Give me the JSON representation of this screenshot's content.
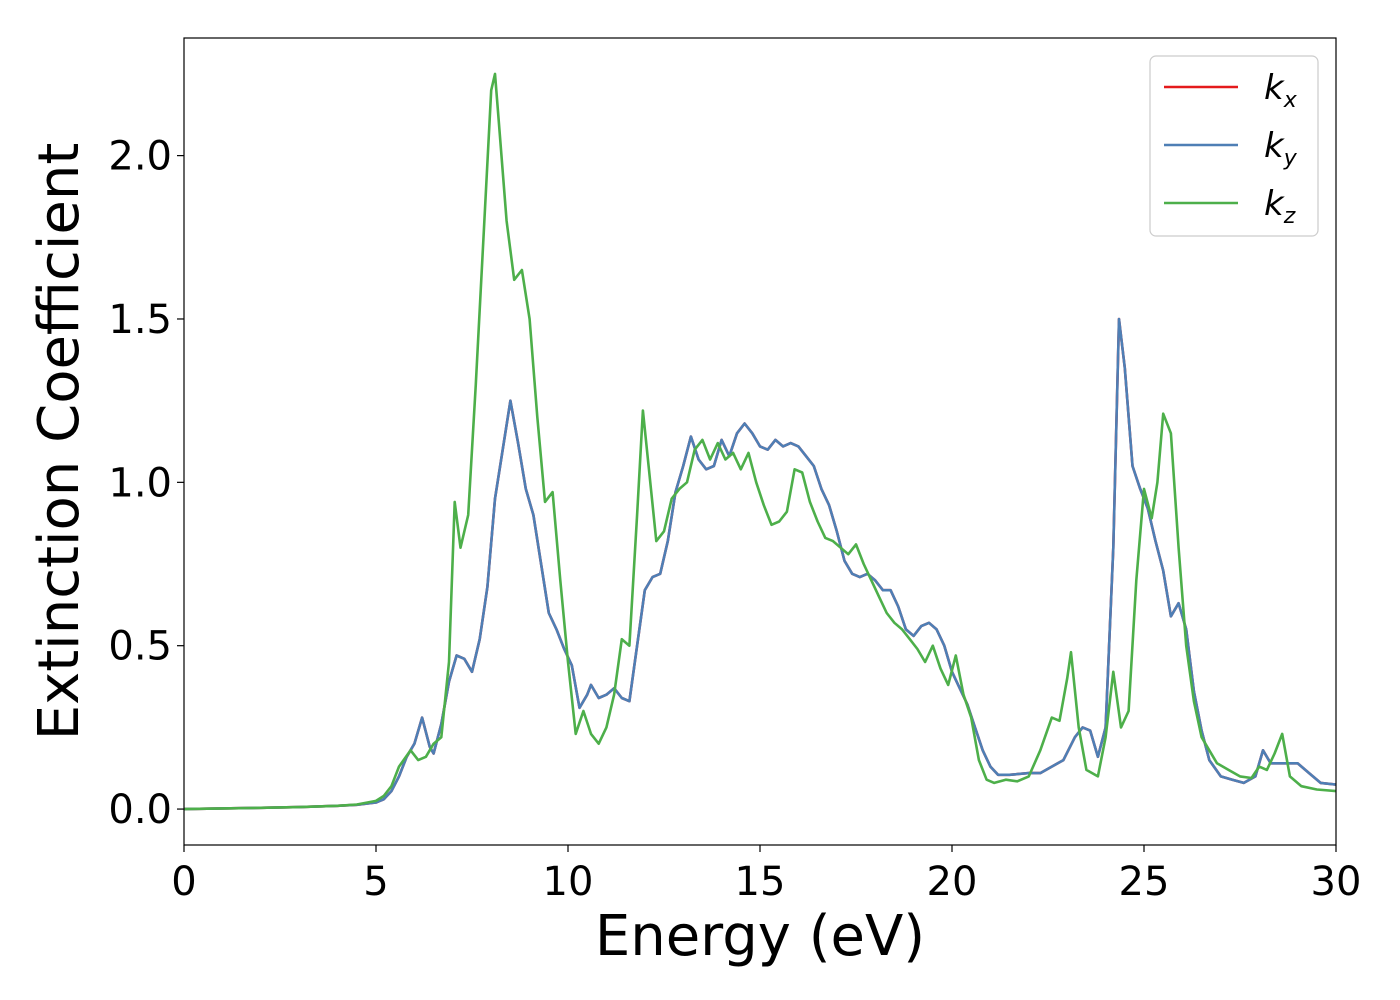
{
  "chart_data": {
    "type": "line",
    "title": "",
    "xlabel": "Energy (eV)",
    "ylabel": "Extinction Coefficient",
    "xlim": [
      0,
      30
    ],
    "ylim": [
      -0.11,
      2.36
    ],
    "xticks": [
      0,
      5,
      10,
      15,
      20,
      25,
      30
    ],
    "xtick_labels": [
      "0",
      "5",
      "10",
      "15",
      "20",
      "25",
      "30"
    ],
    "yticks": [
      0.0,
      0.5,
      1.0,
      1.5,
      2.0
    ],
    "ytick_labels": [
      "0.0",
      "0.5",
      "1.0",
      "1.5",
      "2.0"
    ],
    "grid": false,
    "legend": "top-right",
    "series": [
      {
        "name": "k_x",
        "label_main": "k",
        "label_sub": "x",
        "color": "#e41a1c",
        "x": [
          0,
          1,
          2,
          3,
          4,
          4.5,
          5,
          5.2,
          5.4,
          5.6,
          5.8,
          6.0,
          6.2,
          6.4,
          6.5,
          6.7,
          6.9,
          7.1,
          7.3,
          7.5,
          7.7,
          7.9,
          8.1,
          8.3,
          8.5,
          8.7,
          8.9,
          9.1,
          9.3,
          9.5,
          9.7,
          9.9,
          10.1,
          10.3,
          10.5,
          10.6,
          10.8,
          11.0,
          11.2,
          11.4,
          11.6,
          11.8,
          12.0,
          12.2,
          12.4,
          12.6,
          12.8,
          13.0,
          13.2,
          13.4,
          13.6,
          13.8,
          14.0,
          14.2,
          14.4,
          14.6,
          14.8,
          15.0,
          15.2,
          15.4,
          15.6,
          15.8,
          16.0,
          16.2,
          16.4,
          16.6,
          16.8,
          17.0,
          17.2,
          17.4,
          17.6,
          17.8,
          18.0,
          18.2,
          18.4,
          18.6,
          18.8,
          19.0,
          19.2,
          19.4,
          19.6,
          19.8,
          20.0,
          20.2,
          20.4,
          20.6,
          20.8,
          21.0,
          21.2,
          21.5,
          22.0,
          22.3,
          22.6,
          22.9,
          23.2,
          23.4,
          23.6,
          23.8,
          24.0,
          24.2,
          24.35,
          24.5,
          24.7,
          24.9,
          25.1,
          25.3,
          25.5,
          25.7,
          25.9,
          26.1,
          26.3,
          26.5,
          26.7,
          27.0,
          27.3,
          27.6,
          27.9,
          28.1,
          28.3,
          28.5,
          28.7,
          29.0,
          29.3,
          29.6,
          30.0
        ],
        "y": [
          0.0,
          0.002,
          0.004,
          0.006,
          0.01,
          0.013,
          0.02,
          0.03,
          0.055,
          0.1,
          0.16,
          0.2,
          0.28,
          0.19,
          0.17,
          0.26,
          0.39,
          0.47,
          0.46,
          0.42,
          0.52,
          0.68,
          0.95,
          1.1,
          1.25,
          1.12,
          0.98,
          0.9,
          0.75,
          0.6,
          0.55,
          0.49,
          0.44,
          0.31,
          0.35,
          0.38,
          0.34,
          0.35,
          0.37,
          0.34,
          0.33,
          0.5,
          0.67,
          0.71,
          0.72,
          0.82,
          0.97,
          1.05,
          1.14,
          1.07,
          1.04,
          1.05,
          1.13,
          1.08,
          1.15,
          1.18,
          1.15,
          1.11,
          1.1,
          1.13,
          1.11,
          1.12,
          1.11,
          1.08,
          1.05,
          0.98,
          0.93,
          0.85,
          0.76,
          0.72,
          0.71,
          0.72,
          0.7,
          0.67,
          0.67,
          0.62,
          0.55,
          0.53,
          0.56,
          0.57,
          0.55,
          0.5,
          0.42,
          0.37,
          0.32,
          0.25,
          0.18,
          0.13,
          0.105,
          0.105,
          0.11,
          0.11,
          0.13,
          0.15,
          0.22,
          0.25,
          0.24,
          0.16,
          0.25,
          0.8,
          1.5,
          1.35,
          1.05,
          0.98,
          0.92,
          0.82,
          0.73,
          0.59,
          0.63,
          0.55,
          0.36,
          0.24,
          0.15,
          0.1,
          0.09,
          0.08,
          0.1,
          0.18,
          0.14,
          0.14,
          0.14,
          0.14,
          0.11,
          0.08,
          0.075
        ]
      },
      {
        "name": "k_y",
        "label_main": "k",
        "label_sub": "y",
        "color": "#4e7fb5",
        "x": [
          0,
          1,
          2,
          3,
          4,
          4.5,
          5,
          5.2,
          5.4,
          5.6,
          5.8,
          6.0,
          6.2,
          6.4,
          6.5,
          6.7,
          6.9,
          7.1,
          7.3,
          7.5,
          7.7,
          7.9,
          8.1,
          8.3,
          8.5,
          8.7,
          8.9,
          9.1,
          9.3,
          9.5,
          9.7,
          9.9,
          10.1,
          10.3,
          10.5,
          10.6,
          10.8,
          11.0,
          11.2,
          11.4,
          11.6,
          11.8,
          12.0,
          12.2,
          12.4,
          12.6,
          12.8,
          13.0,
          13.2,
          13.4,
          13.6,
          13.8,
          14.0,
          14.2,
          14.4,
          14.6,
          14.8,
          15.0,
          15.2,
          15.4,
          15.6,
          15.8,
          16.0,
          16.2,
          16.4,
          16.6,
          16.8,
          17.0,
          17.2,
          17.4,
          17.6,
          17.8,
          18.0,
          18.2,
          18.4,
          18.6,
          18.8,
          19.0,
          19.2,
          19.4,
          19.6,
          19.8,
          20.0,
          20.2,
          20.4,
          20.6,
          20.8,
          21.0,
          21.2,
          21.5,
          22.0,
          22.3,
          22.6,
          22.9,
          23.2,
          23.4,
          23.6,
          23.8,
          24.0,
          24.2,
          24.35,
          24.5,
          24.7,
          24.9,
          25.1,
          25.3,
          25.5,
          25.7,
          25.9,
          26.1,
          26.3,
          26.5,
          26.7,
          27.0,
          27.3,
          27.6,
          27.9,
          28.1,
          28.3,
          28.5,
          28.7,
          29.0,
          29.3,
          29.6,
          30.0
        ],
        "y": [
          0.0,
          0.002,
          0.004,
          0.006,
          0.01,
          0.013,
          0.02,
          0.03,
          0.055,
          0.1,
          0.16,
          0.2,
          0.28,
          0.19,
          0.17,
          0.26,
          0.39,
          0.47,
          0.46,
          0.42,
          0.52,
          0.68,
          0.95,
          1.1,
          1.25,
          1.12,
          0.98,
          0.9,
          0.75,
          0.6,
          0.55,
          0.49,
          0.44,
          0.31,
          0.35,
          0.38,
          0.34,
          0.35,
          0.37,
          0.34,
          0.33,
          0.5,
          0.67,
          0.71,
          0.72,
          0.82,
          0.97,
          1.05,
          1.14,
          1.07,
          1.04,
          1.05,
          1.13,
          1.08,
          1.15,
          1.18,
          1.15,
          1.11,
          1.1,
          1.13,
          1.11,
          1.12,
          1.11,
          1.08,
          1.05,
          0.98,
          0.93,
          0.85,
          0.76,
          0.72,
          0.71,
          0.72,
          0.7,
          0.67,
          0.67,
          0.62,
          0.55,
          0.53,
          0.56,
          0.57,
          0.55,
          0.5,
          0.42,
          0.37,
          0.32,
          0.25,
          0.18,
          0.13,
          0.105,
          0.105,
          0.11,
          0.11,
          0.13,
          0.15,
          0.22,
          0.25,
          0.24,
          0.16,
          0.25,
          0.8,
          1.5,
          1.35,
          1.05,
          0.98,
          0.92,
          0.82,
          0.73,
          0.59,
          0.63,
          0.55,
          0.36,
          0.24,
          0.15,
          0.1,
          0.09,
          0.08,
          0.1,
          0.18,
          0.14,
          0.14,
          0.14,
          0.14,
          0.11,
          0.08,
          0.075
        ]
      },
      {
        "name": "k_z",
        "label_main": "k",
        "label_sub": "z",
        "color": "#4daf4a",
        "x": [
          0,
          1,
          2,
          3,
          4,
          4.5,
          5,
          5.2,
          5.4,
          5.6,
          5.9,
          6.1,
          6.3,
          6.5,
          6.7,
          6.9,
          7.05,
          7.2,
          7.4,
          7.6,
          7.8,
          8.0,
          8.1,
          8.2,
          8.4,
          8.6,
          8.8,
          9.0,
          9.2,
          9.4,
          9.6,
          9.8,
          10.0,
          10.2,
          10.4,
          10.6,
          10.8,
          11.0,
          11.2,
          11.4,
          11.6,
          11.8,
          11.95,
          12.1,
          12.3,
          12.5,
          12.7,
          12.9,
          13.1,
          13.3,
          13.5,
          13.7,
          13.9,
          14.1,
          14.3,
          14.5,
          14.7,
          14.9,
          15.1,
          15.3,
          15.5,
          15.7,
          15.9,
          16.1,
          16.3,
          16.5,
          16.7,
          16.9,
          17.1,
          17.3,
          17.5,
          17.7,
          17.9,
          18.1,
          18.3,
          18.5,
          18.7,
          18.9,
          19.1,
          19.3,
          19.5,
          19.7,
          19.9,
          20.1,
          20.3,
          20.5,
          20.7,
          20.9,
          21.1,
          21.4,
          21.7,
          22.0,
          22.3,
          22.6,
          22.8,
          23.0,
          23.1,
          23.3,
          23.5,
          23.8,
          24.0,
          24.2,
          24.4,
          24.6,
          24.8,
          25.0,
          25.2,
          25.35,
          25.5,
          25.7,
          25.9,
          26.1,
          26.3,
          26.5,
          26.7,
          26.9,
          27.2,
          27.5,
          27.8,
          28.0,
          28.2,
          28.4,
          28.6,
          28.8,
          29.1,
          29.5,
          30.0
        ],
        "y": [
          0.0,
          0.002,
          0.004,
          0.006,
          0.01,
          0.014,
          0.025,
          0.04,
          0.07,
          0.13,
          0.18,
          0.15,
          0.16,
          0.2,
          0.22,
          0.45,
          0.94,
          0.8,
          0.9,
          1.3,
          1.75,
          2.2,
          2.25,
          2.1,
          1.8,
          1.62,
          1.65,
          1.5,
          1.2,
          0.94,
          0.97,
          0.7,
          0.45,
          0.23,
          0.3,
          0.23,
          0.2,
          0.25,
          0.35,
          0.52,
          0.5,
          0.9,
          1.22,
          1.05,
          0.82,
          0.85,
          0.95,
          0.98,
          1.0,
          1.1,
          1.13,
          1.07,
          1.12,
          1.07,
          1.09,
          1.04,
          1.09,
          1.0,
          0.93,
          0.87,
          0.88,
          0.91,
          1.04,
          1.03,
          0.94,
          0.88,
          0.83,
          0.82,
          0.8,
          0.78,
          0.81,
          0.75,
          0.7,
          0.65,
          0.6,
          0.57,
          0.55,
          0.52,
          0.49,
          0.45,
          0.5,
          0.43,
          0.38,
          0.47,
          0.35,
          0.28,
          0.15,
          0.09,
          0.08,
          0.09,
          0.085,
          0.1,
          0.18,
          0.28,
          0.27,
          0.4,
          0.48,
          0.25,
          0.12,
          0.1,
          0.22,
          0.42,
          0.25,
          0.3,
          0.7,
          0.98,
          0.89,
          1.0,
          1.21,
          1.15,
          0.8,
          0.5,
          0.33,
          0.22,
          0.18,
          0.14,
          0.12,
          0.1,
          0.095,
          0.13,
          0.12,
          0.17,
          0.23,
          0.1,
          0.07,
          0.06,
          0.055
        ]
      }
    ]
  }
}
